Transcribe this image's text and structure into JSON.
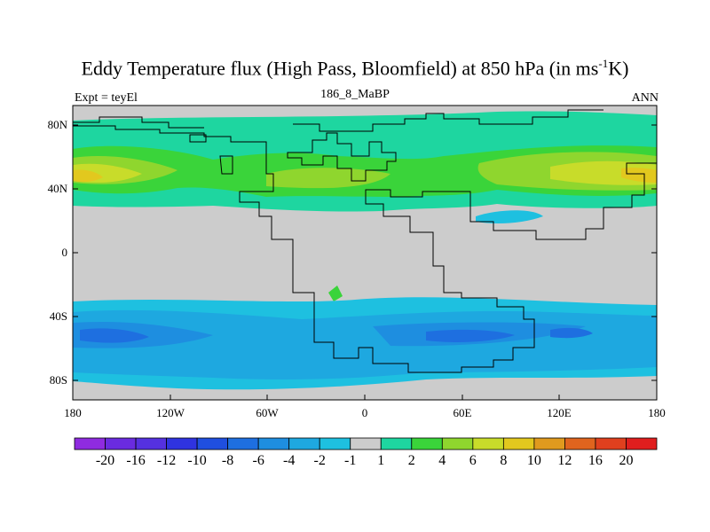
{
  "title": {
    "main": "Eddy Temperature flux (High Pass, Bloomfield) at 850 hPa (in ms",
    "sup": "-1",
    "end": "K)"
  },
  "subtitle": "186_8_MaBP",
  "expt_label": "Expt = teyEl",
  "season_label": "ANN",
  "axes": {
    "y_ticks": [
      "80N",
      "40N",
      "0",
      "40S",
      "80S"
    ],
    "x_ticks": [
      "180",
      "120W",
      "60W",
      "0",
      "60E",
      "120E",
      "180"
    ]
  },
  "colorbar": {
    "labels": [
      "-20",
      "-16",
      "-12",
      "-10",
      "-8",
      "-6",
      "-4",
      "-2",
      "-1",
      "1",
      "2",
      "4",
      "6",
      "8",
      "10",
      "12",
      "16",
      "20"
    ],
    "colors": [
      "#8f2be0",
      "#6a2be0",
      "#5531e0",
      "#2f33e0",
      "#1f4fe0",
      "#1e6fe0",
      "#1e8ee0",
      "#1ea8e0",
      "#1ec0e0",
      "#cccccc",
      "#1ed6a0",
      "#3ad43a",
      "#8fd62e",
      "#c8dc2a",
      "#e2c81e",
      "#e09a1e",
      "#e0641e",
      "#e0401e",
      "#e01e1e"
    ]
  },
  "colors": {
    "land_missing": "#cccccc",
    "coast": "#000000"
  }
}
